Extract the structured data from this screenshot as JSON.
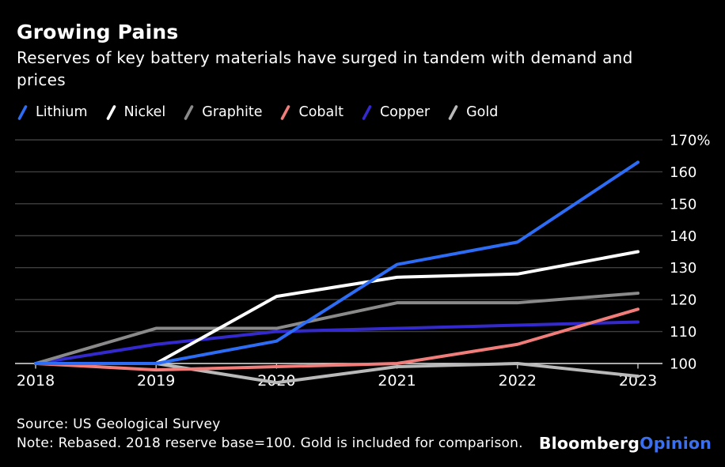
{
  "header": {
    "title": "Growing Pains",
    "subtitle_lines": [
      "Reserves of key battery materials have surged in tandem with demand and",
      "prices"
    ]
  },
  "legend": [
    {
      "label": "Lithium",
      "color": "#2d6df6"
    },
    {
      "label": "Nickel",
      "color": "#ffffff"
    },
    {
      "label": "Graphite",
      "color": "#8a8a8a"
    },
    {
      "label": "Cobalt",
      "color": "#f07d7a"
    },
    {
      "label": "Copper",
      "color": "#3329cd"
    },
    {
      "label": "Gold",
      "color": "#b9b9b9"
    }
  ],
  "chart_data": {
    "type": "line",
    "title": "Growing Pains",
    "subtitle": "Reserves of key battery materials have surged in tandem with demand and prices",
    "x": [
      2018,
      2019,
      2020,
      2021,
      2022,
      2023
    ],
    "x_labels": [
      "2018",
      "2019",
      "2020",
      "2021",
      "2022",
      "2023"
    ],
    "series": [
      {
        "name": "Lithium",
        "color": "#2d6df6",
        "values": [
          100,
          100,
          107,
          131,
          138,
          163
        ]
      },
      {
        "name": "Nickel",
        "color": "#ffffff",
        "values": [
          100,
          100,
          121,
          127,
          128,
          135
        ]
      },
      {
        "name": "Graphite",
        "color": "#8a8a8a",
        "values": [
          100,
          111,
          111,
          119,
          119,
          122
        ]
      },
      {
        "name": "Cobalt",
        "color": "#f07d7a",
        "values": [
          100,
          98,
          99,
          100,
          106,
          117
        ]
      },
      {
        "name": "Copper",
        "color": "#3329cd",
        "values": [
          100,
          106,
          110,
          111,
          112,
          113
        ]
      },
      {
        "name": "Gold",
        "color": "#b9b9b9",
        "values": [
          100,
          100,
          94,
          99,
          100,
          96
        ]
      }
    ],
    "yticks": [
      100,
      110,
      120,
      130,
      140,
      150,
      160,
      170
    ],
    "ytick_labels": [
      "100",
      "110",
      "120",
      "130",
      "140",
      "150",
      "160",
      "170%"
    ],
    "ylim": [
      100,
      170
    ],
    "baseline": 100,
    "grid": "horizontal",
    "legend_position": "top",
    "xlabel": "",
    "ylabel": ""
  },
  "footer": {
    "source": "Source: US Geological Survey",
    "note": "Note: Rebased. 2018 reserve base=100. Gold is included for comparison."
  },
  "branding": {
    "bloomberg": "Bloomberg",
    "opinion": "Opinion",
    "opinion_color": "#3a6ff0"
  }
}
